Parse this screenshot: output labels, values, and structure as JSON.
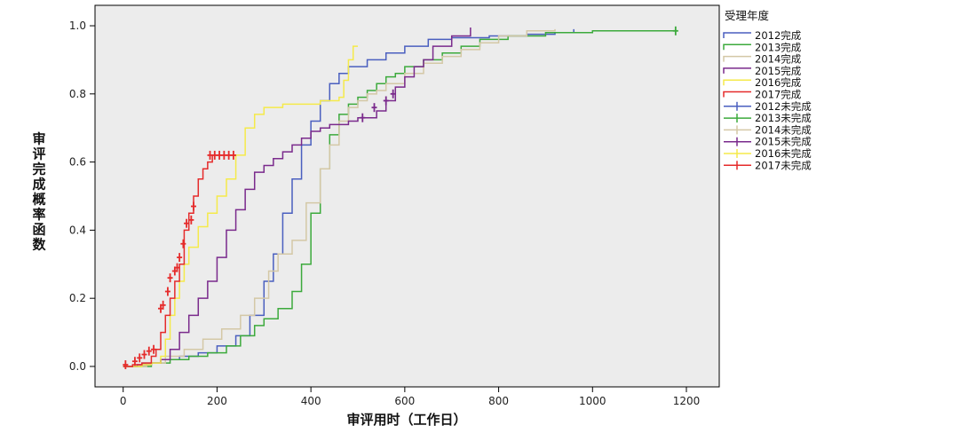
{
  "chart_data": {
    "type": "line",
    "chart_kind": "step",
    "xlabel": "审评用时（工作日）",
    "ylabel": "审评完成概率函数",
    "xlim": [
      -60,
      1270
    ],
    "ylim": [
      -0.06,
      1.06
    ],
    "xticks": [
      0,
      200,
      400,
      600,
      800,
      1000,
      1200
    ],
    "xtick_labels": [
      "0",
      "200",
      "400",
      "600",
      "800",
      "1000",
      "1200"
    ],
    "yticks": [
      0.0,
      0.2,
      0.4,
      0.6,
      0.8,
      1.0
    ],
    "ytick_labels": [
      "0.0",
      "0.2",
      "0.4",
      "0.6",
      "0.8",
      "1.0"
    ],
    "plot_background": "#ececec",
    "grid": false,
    "legend": {
      "title": "受理年度",
      "placement": "right",
      "entries": [
        {
          "label": "2012完成",
          "color": "#4a5fbf",
          "marker": "step"
        },
        {
          "label": "2013完成",
          "color": "#3caa3c",
          "marker": "step"
        },
        {
          "label": "2014完成",
          "color": "#d4c8a6",
          "marker": "step"
        },
        {
          "label": "2015完成",
          "color": "#7a2a8c",
          "marker": "step"
        },
        {
          "label": "2016完成",
          "color": "#f5ea4a",
          "marker": "step"
        },
        {
          "label": "2017完成",
          "color": "#e52b2b",
          "marker": "step"
        },
        {
          "label": "2012未完成",
          "color": "#4a5fbf",
          "marker": "cross"
        },
        {
          "label": "2013未完成",
          "color": "#3caa3c",
          "marker": "cross"
        },
        {
          "label": "2014未完成",
          "color": "#d4c8a6",
          "marker": "cross"
        },
        {
          "label": "2015未完成",
          "color": "#7a2a8c",
          "marker": "cross"
        },
        {
          "label": "2016未完成",
          "color": "#f5ea4a",
          "marker": "cross"
        },
        {
          "label": "2017未完成",
          "color": "#e52b2b",
          "marker": "cross"
        }
      ]
    },
    "series": [
      {
        "name": "2012完成",
        "color": "#4a5fbf",
        "points": [
          [
            0,
            0
          ],
          [
            40,
            0.01
          ],
          [
            80,
            0.02
          ],
          [
            120,
            0.03
          ],
          [
            160,
            0.04
          ],
          [
            200,
            0.06
          ],
          [
            240,
            0.09
          ],
          [
            270,
            0.15
          ],
          [
            300,
            0.25
          ],
          [
            320,
            0.33
          ],
          [
            340,
            0.45
          ],
          [
            360,
            0.55
          ],
          [
            380,
            0.65
          ],
          [
            400,
            0.72
          ],
          [
            420,
            0.78
          ],
          [
            440,
            0.83
          ],
          [
            460,
            0.86
          ],
          [
            480,
            0.88
          ],
          [
            520,
            0.9
          ],
          [
            560,
            0.92
          ],
          [
            600,
            0.94
          ],
          [
            650,
            0.96
          ],
          [
            700,
            0.965
          ],
          [
            780,
            0.97
          ],
          [
            860,
            0.975
          ],
          [
            920,
            0.98
          ],
          [
            960,
            0.99
          ]
        ],
        "censored": []
      },
      {
        "name": "2013完成",
        "color": "#3caa3c",
        "points": [
          [
            0,
            0
          ],
          [
            60,
            0.01
          ],
          [
            100,
            0.02
          ],
          [
            140,
            0.03
          ],
          [
            180,
            0.04
          ],
          [
            220,
            0.06
          ],
          [
            250,
            0.09
          ],
          [
            280,
            0.12
          ],
          [
            300,
            0.14
          ],
          [
            330,
            0.17
          ],
          [
            360,
            0.22
          ],
          [
            380,
            0.3
          ],
          [
            400,
            0.45
          ],
          [
            420,
            0.58
          ],
          [
            440,
            0.68
          ],
          [
            460,
            0.74
          ],
          [
            480,
            0.77
          ],
          [
            500,
            0.79
          ],
          [
            520,
            0.81
          ],
          [
            540,
            0.83
          ],
          [
            560,
            0.85
          ],
          [
            580,
            0.86
          ],
          [
            600,
            0.88
          ],
          [
            640,
            0.9
          ],
          [
            680,
            0.92
          ],
          [
            720,
            0.94
          ],
          [
            760,
            0.96
          ],
          [
            820,
            0.97
          ],
          [
            900,
            0.98
          ],
          [
            1000,
            0.985
          ],
          [
            1180,
            0.985
          ]
        ],
        "censored": [
          [
            1177,
            0.985
          ]
        ]
      },
      {
        "name": "2014完成",
        "color": "#d4c8a6",
        "points": [
          [
            0,
            0
          ],
          [
            50,
            0.01
          ],
          [
            90,
            0.03
          ],
          [
            130,
            0.05
          ],
          [
            170,
            0.08
          ],
          [
            210,
            0.11
          ],
          [
            250,
            0.15
          ],
          [
            280,
            0.2
          ],
          [
            310,
            0.28
          ],
          [
            330,
            0.33
          ],
          [
            360,
            0.37
          ],
          [
            390,
            0.48
          ],
          [
            420,
            0.58
          ],
          [
            440,
            0.65
          ],
          [
            460,
            0.72
          ],
          [
            480,
            0.76
          ],
          [
            500,
            0.78
          ],
          [
            520,
            0.8
          ],
          [
            540,
            0.81
          ],
          [
            560,
            0.83
          ],
          [
            600,
            0.86
          ],
          [
            640,
            0.89
          ],
          [
            680,
            0.91
          ],
          [
            720,
            0.93
          ],
          [
            760,
            0.95
          ],
          [
            800,
            0.97
          ],
          [
            860,
            0.985
          ],
          [
            920,
            0.99
          ]
        ],
        "censored": []
      },
      {
        "name": "2015完成",
        "color": "#7a2a8c",
        "points": [
          [
            0,
            0
          ],
          [
            30,
            0.005
          ],
          [
            60,
            0.01
          ],
          [
            80,
            0.02
          ],
          [
            100,
            0.05
          ],
          [
            120,
            0.1
          ],
          [
            140,
            0.15
          ],
          [
            160,
            0.2
          ],
          [
            180,
            0.25
          ],
          [
            200,
            0.32
          ],
          [
            220,
            0.4
          ],
          [
            240,
            0.46
          ],
          [
            260,
            0.52
          ],
          [
            280,
            0.57
          ],
          [
            300,
            0.59
          ],
          [
            320,
            0.61
          ],
          [
            340,
            0.63
          ],
          [
            360,
            0.65
          ],
          [
            380,
            0.67
          ],
          [
            400,
            0.69
          ],
          [
            420,
            0.7
          ],
          [
            440,
            0.71
          ],
          [
            480,
            0.72
          ],
          [
            500,
            0.73
          ],
          [
            540,
            0.75
          ],
          [
            560,
            0.78
          ],
          [
            580,
            0.82
          ],
          [
            600,
            0.85
          ],
          [
            620,
            0.88
          ],
          [
            640,
            0.9
          ],
          [
            660,
            0.94
          ],
          [
            700,
            0.97
          ],
          [
            740,
            0.995
          ]
        ],
        "censored": [
          [
            510,
            0.73
          ],
          [
            535,
            0.76
          ],
          [
            560,
            0.78
          ],
          [
            575,
            0.8
          ]
        ]
      },
      {
        "name": "2016完成",
        "color": "#f5ea4a",
        "points": [
          [
            0,
            0
          ],
          [
            40,
            0.005
          ],
          [
            60,
            0.01
          ],
          [
            80,
            0.03
          ],
          [
            90,
            0.08
          ],
          [
            100,
            0.15
          ],
          [
            110,
            0.2
          ],
          [
            120,
            0.25
          ],
          [
            130,
            0.3
          ],
          [
            140,
            0.35
          ],
          [
            160,
            0.41
          ],
          [
            180,
            0.45
          ],
          [
            200,
            0.5
          ],
          [
            220,
            0.55
          ],
          [
            240,
            0.62
          ],
          [
            260,
            0.7
          ],
          [
            280,
            0.74
          ],
          [
            300,
            0.76
          ],
          [
            340,
            0.77
          ],
          [
            380,
            0.77
          ],
          [
            420,
            0.78
          ],
          [
            460,
            0.79
          ],
          [
            470,
            0.84
          ],
          [
            480,
            0.9
          ],
          [
            490,
            0.94
          ],
          [
            500,
            0.94
          ]
        ],
        "censored": []
      },
      {
        "name": "2017完成",
        "color": "#e52b2b",
        "points": [
          [
            0,
            0
          ],
          [
            20,
            0.005
          ],
          [
            40,
            0.01
          ],
          [
            60,
            0.03
          ],
          [
            70,
            0.05
          ],
          [
            80,
            0.1
          ],
          [
            90,
            0.15
          ],
          [
            100,
            0.2
          ],
          [
            110,
            0.25
          ],
          [
            120,
            0.3
          ],
          [
            130,
            0.4
          ],
          [
            140,
            0.45
          ],
          [
            150,
            0.5
          ],
          [
            160,
            0.55
          ],
          [
            170,
            0.58
          ],
          [
            180,
            0.6
          ],
          [
            190,
            0.62
          ],
          [
            240,
            0.62
          ]
        ],
        "censored": [
          [
            5,
            0.005
          ],
          [
            25,
            0.015
          ],
          [
            35,
            0.025
          ],
          [
            45,
            0.035
          ],
          [
            55,
            0.045
          ],
          [
            65,
            0.05
          ],
          [
            80,
            0.17
          ],
          [
            85,
            0.18
          ],
          [
            95,
            0.22
          ],
          [
            100,
            0.26
          ],
          [
            110,
            0.28
          ],
          [
            115,
            0.29
          ],
          [
            120,
            0.32
          ],
          [
            128,
            0.36
          ],
          [
            135,
            0.42
          ],
          [
            145,
            0.43
          ],
          [
            150,
            0.47
          ],
          [
            185,
            0.62
          ],
          [
            195,
            0.62
          ],
          [
            205,
            0.62
          ],
          [
            215,
            0.62
          ],
          [
            225,
            0.62
          ],
          [
            235,
            0.62
          ]
        ]
      }
    ]
  }
}
